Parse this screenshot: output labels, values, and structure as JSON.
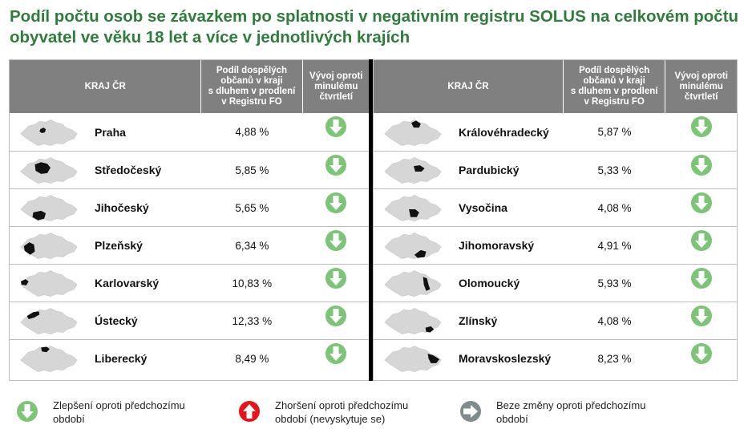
{
  "title": "Podíl počtu osob se závazkem po splatnosti v negativním registru SOLUS na celkovém počtu obyvatel ve věku 18 let a více v jednotlivých krajích",
  "header": {
    "region": "KRAJ ČR",
    "share_line1": "Podíl dospělých",
    "share_line2": "občanů v kraji",
    "share_line3": "s dluhem v prodlení",
    "share_line4": "v Registru FO",
    "trend_line1": "Vývoj oproti",
    "trend_line2": "minulému",
    "trend_line3": "čtvrtletí"
  },
  "colors": {
    "title": "#2e7d3c",
    "header_bg": "#808080",
    "improve": "#7cc576",
    "worsen": "#e8141b",
    "nochange": "#7f8c8d"
  },
  "left": [
    {
      "name": "Praha",
      "value": "4,88 %",
      "trend": "improve-icon"
    },
    {
      "name": "Středočeský",
      "value": "5,85 %",
      "trend": "improve-icon"
    },
    {
      "name": "Jihočeský",
      "value": "5,65 %",
      "trend": "improve-icon"
    },
    {
      "name": "Plzeňský",
      "value": "6,34 %",
      "trend": "improve-icon"
    },
    {
      "name": "Karlovarský",
      "value": "10,83 %",
      "trend": "improve-icon"
    },
    {
      "name": "Ústecký",
      "value": "12,33 %",
      "trend": "improve-icon"
    },
    {
      "name": "Liberecký",
      "value": "8,49 %",
      "trend": "improve-icon"
    }
  ],
  "right": [
    {
      "name": "Královéhradecký",
      "value": "5,87 %",
      "trend": "improve-icon"
    },
    {
      "name": "Pardubický",
      "value": "5,33 %",
      "trend": "improve-icon"
    },
    {
      "name": "Vysočina",
      "value": "4,08 %",
      "trend": "improve-icon"
    },
    {
      "name": "Jihomoravský",
      "value": "4,91 %",
      "trend": "improve-icon"
    },
    {
      "name": "Olomoucký",
      "value": "5,93 %",
      "trend": "improve-icon"
    },
    {
      "name": "Zlínský",
      "value": "4,08 %",
      "trend": "improve-icon"
    },
    {
      "name": "Moravskoslezský",
      "value": "8,23 %",
      "trend": "improve-icon"
    }
  ],
  "legend": {
    "improve_line1": "Zlepšení oproti předchozímu",
    "improve_line2": "období",
    "worsen_line1": "Zhoršení oproti předchozímu",
    "worsen_line2": "období (nevyskytuje se)",
    "nochange_line1": "Beze změny oproti předchozímu",
    "nochange_line2": "období"
  }
}
